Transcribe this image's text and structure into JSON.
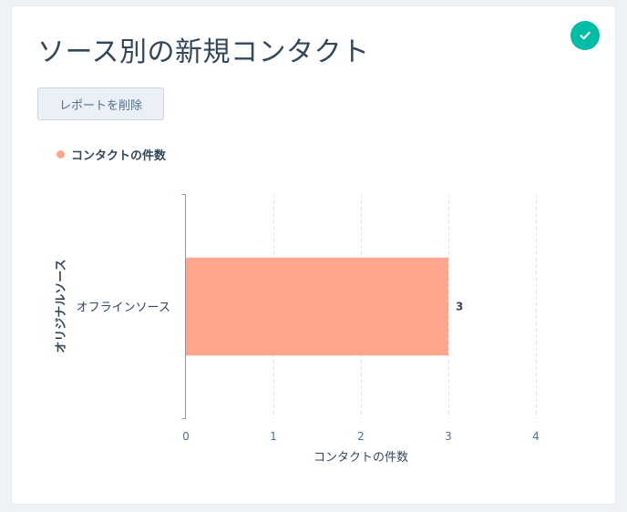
{
  "colors": {
    "accent": "#00bda5",
    "bar": "#fea58e",
    "title": "#33475b"
  },
  "header": {
    "title": "ソース別の新規コンタクト",
    "status_icon": "checkmark-circle-icon"
  },
  "actions": {
    "delete_label": "レポートを削除"
  },
  "chart_data": {
    "type": "bar",
    "orientation": "horizontal",
    "categories": [
      "オフラインソース"
    ],
    "series": [
      {
        "name": "コンタクトの件数",
        "values": [
          3
        ],
        "color": "#fea58e"
      }
    ],
    "data_labels": [
      "3"
    ],
    "xlabel": "コンタクトの件数",
    "ylabel": "オリジナルソース",
    "xlim": [
      0,
      4
    ],
    "xticks": [
      0,
      1,
      2,
      3,
      4
    ],
    "grid": true,
    "legend": "top-left"
  }
}
